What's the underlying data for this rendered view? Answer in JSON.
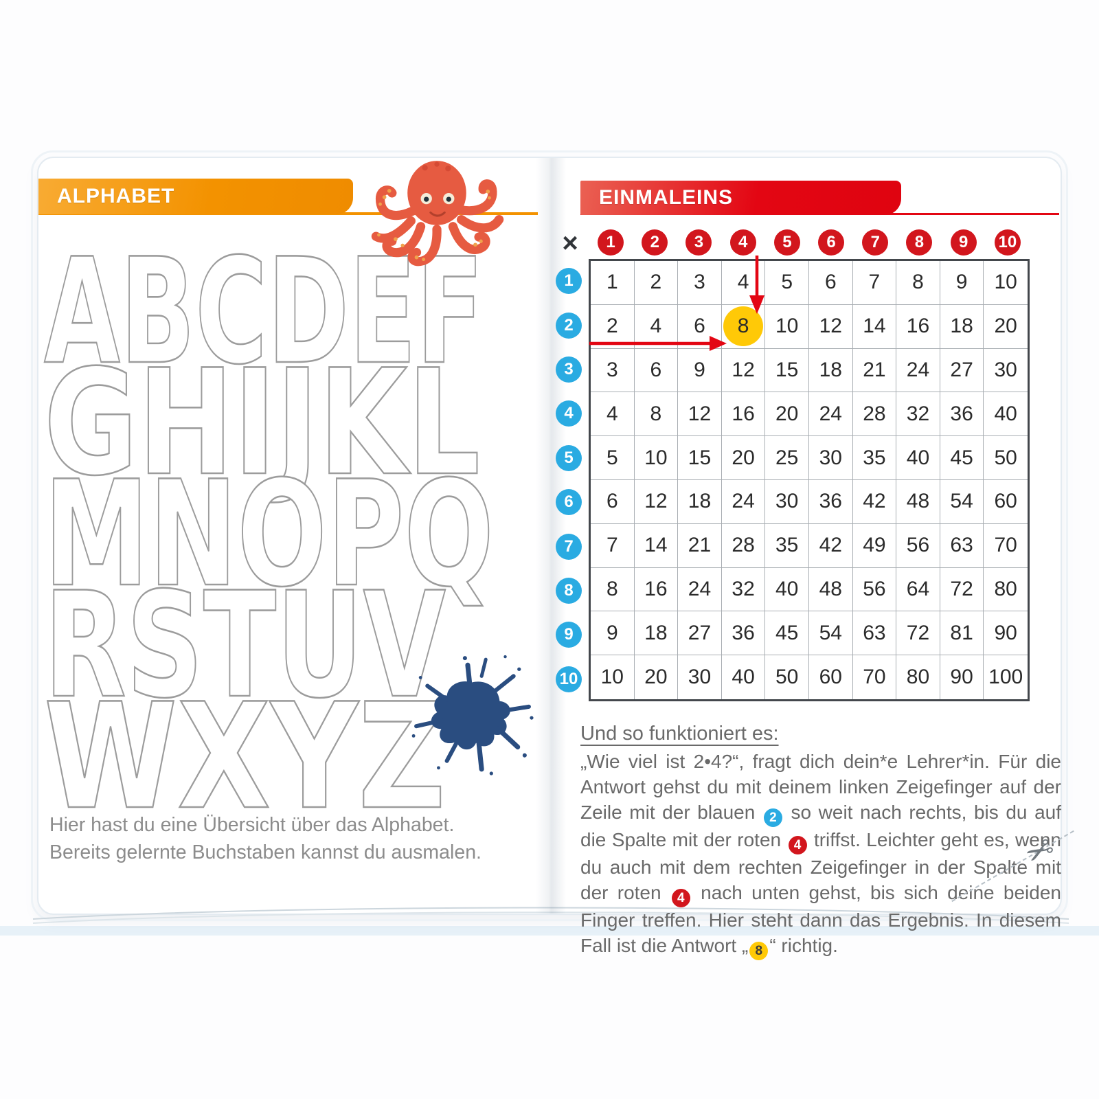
{
  "book": {
    "left_page": {
      "tab_title": "ALPHABET",
      "alphabet_rows": [
        "ABCDEF",
        "GHIJKL",
        "MNOPQ",
        "RSTUV",
        "WXYZ"
      ],
      "alphabet_row_lengths": [
        "640",
        "635",
        "655",
        "585",
        "585"
      ],
      "caption_lines": [
        "Hier hast du eine Übersicht über das Alphabet.",
        "Bereits gelernte Buchstaben kannst du ausmalen."
      ]
    },
    "right_page": {
      "tab_title": "EINMALEINS",
      "multiplication_table": {
        "operator": "×",
        "column_headers": [
          "1",
          "2",
          "3",
          "4",
          "5",
          "6",
          "7",
          "8",
          "9",
          "10"
        ],
        "row_headers": [
          "1",
          "2",
          "3",
          "4",
          "5",
          "6",
          "7",
          "8",
          "9",
          "10"
        ],
        "rows": [
          [
            1,
            2,
            3,
            4,
            5,
            6,
            7,
            8,
            9,
            10
          ],
          [
            2,
            4,
            6,
            8,
            10,
            12,
            14,
            16,
            18,
            20
          ],
          [
            3,
            6,
            9,
            12,
            15,
            18,
            21,
            24,
            27,
            30
          ],
          [
            4,
            8,
            12,
            16,
            20,
            24,
            28,
            32,
            36,
            40
          ],
          [
            5,
            10,
            15,
            20,
            25,
            30,
            35,
            40,
            45,
            50
          ],
          [
            6,
            12,
            18,
            24,
            30,
            36,
            42,
            48,
            54,
            60
          ],
          [
            7,
            14,
            21,
            28,
            35,
            42,
            49,
            56,
            63,
            70
          ],
          [
            8,
            16,
            24,
            32,
            40,
            48,
            56,
            64,
            72,
            80
          ],
          [
            9,
            18,
            27,
            36,
            45,
            54,
            63,
            72,
            81,
            90
          ],
          [
            10,
            20,
            30,
            40,
            50,
            60,
            70,
            80,
            90,
            100
          ]
        ],
        "highlight": {
          "row": 2,
          "column": 4,
          "value": 8
        }
      },
      "instructions": {
        "heading": "Und so funktioniert es:",
        "segments": [
          {
            "type": "text",
            "text": "„Wie viel ist 2•4?“, fragt dich dein*e Lehrer*in. Für die Antwort gehst du mit deinem linken Zeigefinger auf der Zeile mit der blauen "
          },
          {
            "type": "badge",
            "style": "blue",
            "text": "2"
          },
          {
            "type": "text",
            "text": " so weit nach rechts, bis du auf die Spalte mit der roten "
          },
          {
            "type": "badge",
            "style": "red",
            "text": "4"
          },
          {
            "type": "text",
            "text": " triffst. Leichter geht es, wenn du auch mit dem rechten Zeigefinger in der Spalte mit der roten "
          },
          {
            "type": "badge",
            "style": "red",
            "text": "4"
          },
          {
            "type": "text",
            "text": " nach unten gehst, bis sich deine beiden Finger treffen. Hier steht dann das Ergebnis. In diesem Fall ist die Antwort „"
          },
          {
            "type": "badge",
            "style": "yellow",
            "text": "8"
          },
          {
            "type": "text",
            "text": "“ richtig."
          }
        ]
      }
    },
    "colors": {
      "orange_banner": "#f39200",
      "red_banner": "#e30613",
      "red_circle": "#d2161d",
      "blue_circle": "#2aabe2",
      "highlight_yellow": "#ffc907",
      "arrow_red": "#e30613",
      "splat_navy": "#2a4d80",
      "octopus_red": "#e65b41",
      "letter_outline": "#9c9c9c",
      "body_text_gray": "#696969"
    }
  }
}
